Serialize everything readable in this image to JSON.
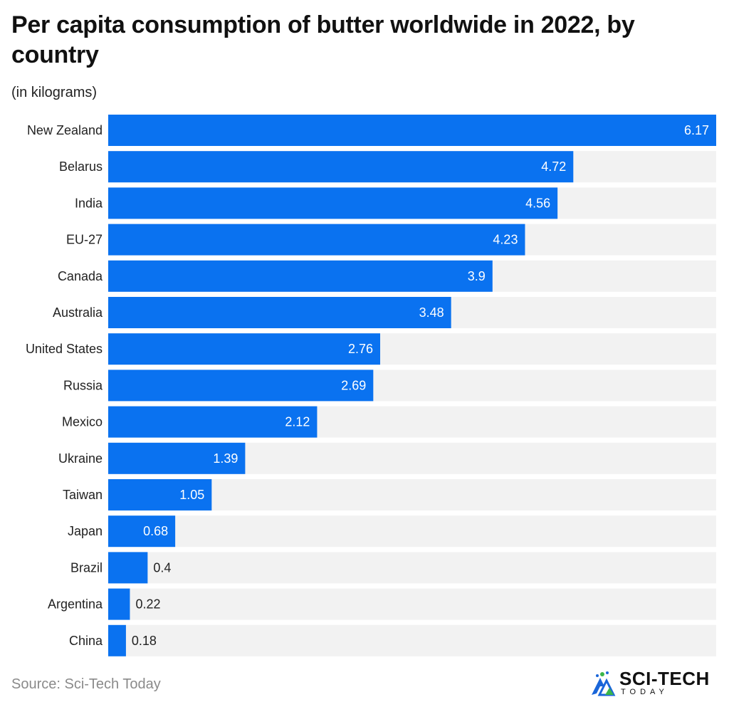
{
  "chart_data": {
    "type": "bar",
    "orientation": "horizontal",
    "title": "Per capita consumption of butter worldwide in 2022, by country",
    "subtitle": "(in kilograms)",
    "categories": [
      "New Zealand",
      "Belarus",
      "India",
      "EU-27",
      "Canada",
      "Australia",
      "United States",
      "Russia",
      "Mexico",
      "Ukraine",
      "Taiwan",
      "Japan",
      "Brazil",
      "Argentina",
      "China"
    ],
    "values": [
      6.17,
      4.72,
      4.56,
      4.23,
      3.9,
      3.48,
      2.76,
      2.69,
      2.12,
      1.39,
      1.05,
      0.68,
      0.4,
      0.22,
      0.18
    ],
    "value_labels": [
      "6.17",
      "4.72",
      "4.56",
      "4.23",
      "3.9",
      "3.48",
      "2.76",
      "2.69",
      "2.12",
      "1.39",
      "1.05",
      "0.68",
      "0.4",
      "0.22",
      "0.18"
    ],
    "xlim": [
      0,
      6.17
    ],
    "xlabel": "",
    "ylabel": "",
    "grid": false,
    "legend": "none"
  },
  "colors": {
    "bar": "#0a72f0",
    "track": "#f2f2f2",
    "label_inside": "#ffffff",
    "label_outside": "#222222",
    "logo_blue": "#1a66d9",
    "logo_green": "#3bb54a"
  },
  "footer": {
    "source": "Source: Sci-Tech Today"
  },
  "logo": {
    "main": "SCI-TECH",
    "sub": "TODAY",
    "icon": "sci-tech-logo-mark-icon"
  }
}
